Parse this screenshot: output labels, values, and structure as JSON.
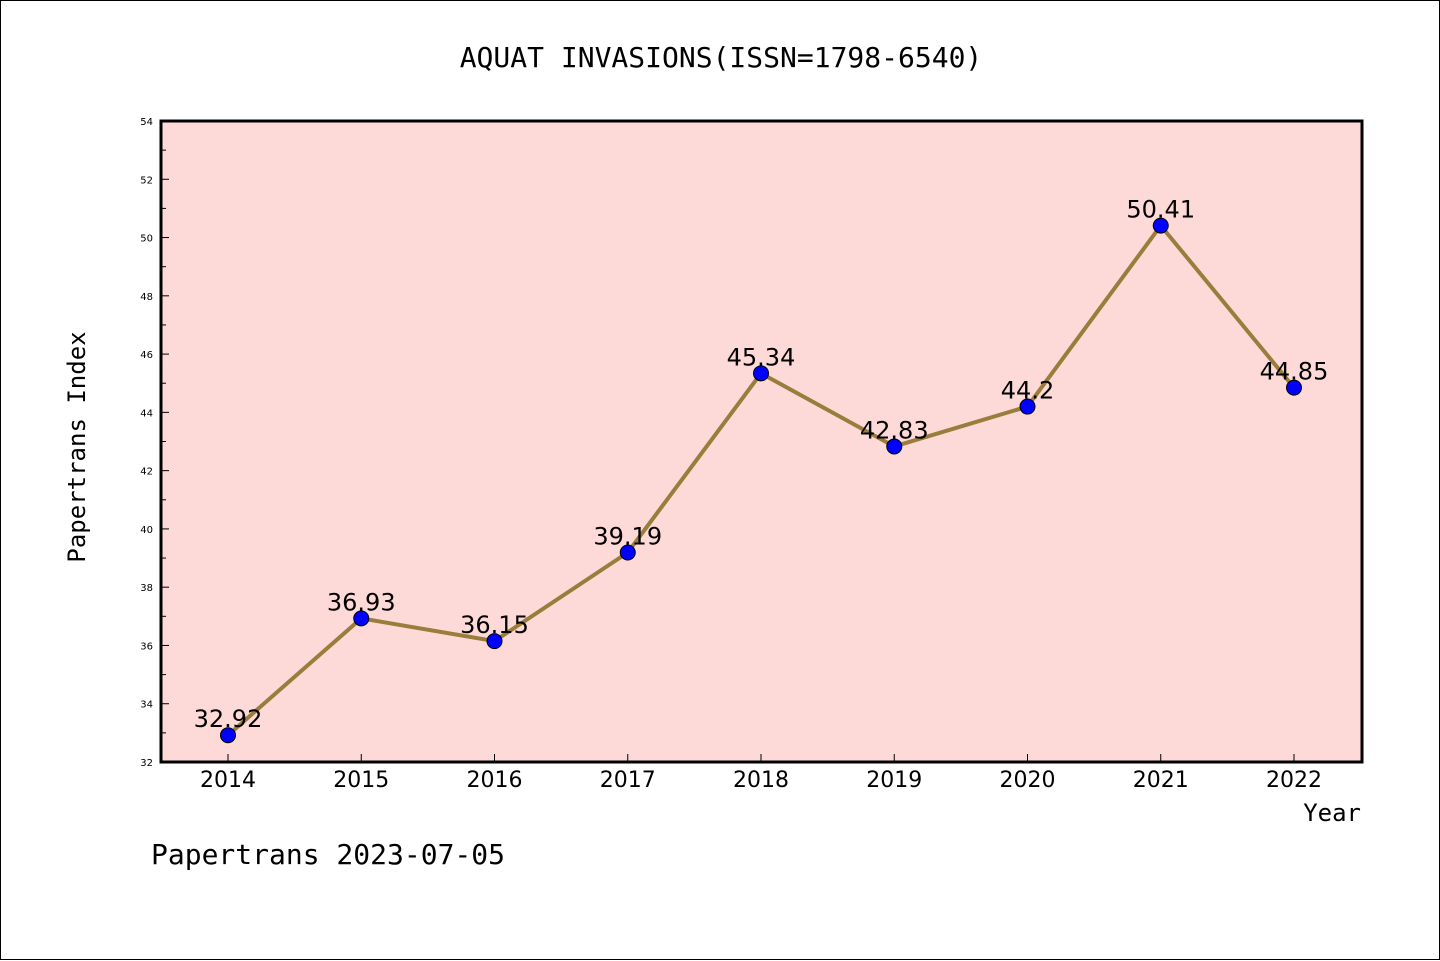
{
  "chart_data": {
    "type": "line",
    "title": "AQUAT INVASIONS(ISSN=1798-6540)",
    "xlabel": "Year",
    "ylabel": "Papertrans Index",
    "categories": [
      "2014",
      "2015",
      "2016",
      "2017",
      "2018",
      "2019",
      "2020",
      "2021",
      "2022"
    ],
    "values": [
      32.92,
      36.93,
      36.15,
      39.19,
      45.34,
      42.83,
      44.2,
      50.41,
      44.85
    ],
    "data_labels": [
      "32.92",
      "36.93",
      "36.15",
      "39.19",
      "45.34",
      "42.83",
      "44.2",
      "50.41",
      "44.85"
    ],
    "ylim": [
      32,
      54
    ],
    "yticks": [
      "32",
      "34",
      "36",
      "38",
      "40",
      "42",
      "44",
      "46",
      "48",
      "50",
      "52",
      "54"
    ],
    "grid": false,
    "legend": "none",
    "colors": {
      "plot_background": "#fdd9d7",
      "line": "#9a7d3a",
      "marker": "#0000ff"
    }
  },
  "footer": "Papertrans 2023-07-05"
}
